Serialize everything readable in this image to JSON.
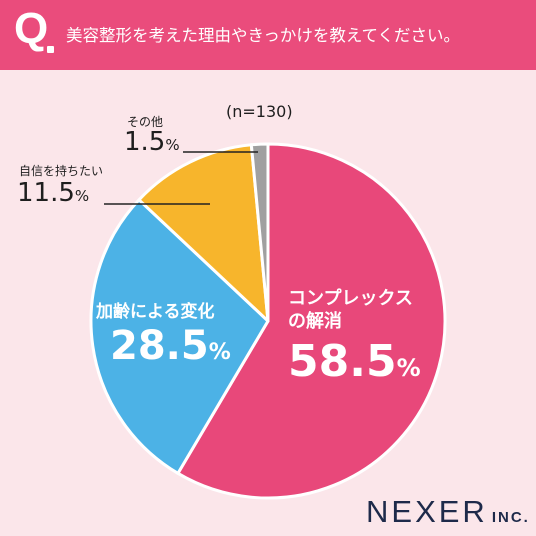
{
  "header": {
    "q_letter": "Q",
    "question": "美容整形を考えた理由やきっかけを教えてください。"
  },
  "sample_size": "(n=130)",
  "brand": {
    "name": "NEXER",
    "suffix": "INC."
  },
  "colors": {
    "header_bg": "#ea4c7c",
    "background": "#fbe6ea",
    "complex": "#e8487a",
    "aging": "#4cb2e6",
    "confidence": "#f7b52c",
    "other": "#a0a0a0"
  },
  "chart_data": {
    "type": "pie",
    "title": "美容整形を考えた理由やきっかけを教えてください。",
    "unit": "%",
    "slices": [
      {
        "label_lines": [
          "コンプレックス",
          "の解消"
        ],
        "value": 58.5,
        "value_text": "58.5",
        "color": "#e8487a"
      },
      {
        "label_lines": [
          "加齢による変化"
        ],
        "value": 28.5,
        "value_text": "28.5",
        "color": "#4cb2e6"
      },
      {
        "label_lines": [
          "自信を持ちたい"
        ],
        "value": 11.5,
        "value_text": "11.5",
        "color": "#f7b52c"
      },
      {
        "label_lines": [
          "その他"
        ],
        "value": 1.5,
        "value_text": "1.5",
        "color": "#a0a0a0"
      }
    ]
  }
}
